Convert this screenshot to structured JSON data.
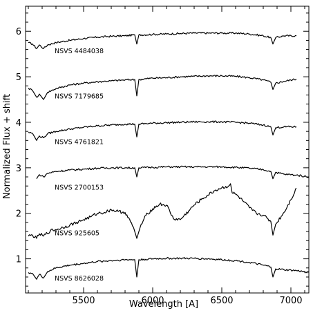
{
  "chart_data": {
    "type": "line",
    "title": "",
    "xlabel": "Wavelength   [A]",
    "ylabel": "Normalized Flux + shift",
    "xlim": [
      5080,
      7130
    ],
    "ylim": [
      0.25,
      6.55
    ],
    "x_ticks": [
      5500,
      6000,
      6500,
      7000
    ],
    "x_tick_labels": [
      "5500",
      "6000",
      "6500",
      "7000"
    ],
    "y_ticks": [
      1,
      2,
      3,
      4,
      5,
      6
    ],
    "y_tick_labels": [
      "1",
      "2",
      "3",
      "4",
      "5",
      "6"
    ],
    "grid": false,
    "series": [
      {
        "name": "NSVS 4484038",
        "label_at": [
          5290,
          5.52
        ],
        "points": [
          [
            5100,
            5.75
          ],
          [
            5130,
            5.72
          ],
          [
            5160,
            5.62
          ],
          [
            5180,
            5.7
          ],
          [
            5210,
            5.62
          ],
          [
            5240,
            5.7
          ],
          [
            5300,
            5.75
          ],
          [
            5400,
            5.8
          ],
          [
            5500,
            5.84
          ],
          [
            5600,
            5.87
          ],
          [
            5700,
            5.89
          ],
          [
            5800,
            5.9
          ],
          [
            5870,
            5.92
          ],
          [
            5885,
            5.72
          ],
          [
            5900,
            5.92
          ],
          [
            6000,
            5.93
          ],
          [
            6100,
            5.94
          ],
          [
            6200,
            5.95
          ],
          [
            6300,
            5.96
          ],
          [
            6400,
            5.96
          ],
          [
            6500,
            5.96
          ],
          [
            6600,
            5.96
          ],
          [
            6700,
            5.94
          ],
          [
            6800,
            5.9
          ],
          [
            6855,
            5.86
          ],
          [
            6870,
            5.72
          ],
          [
            6890,
            5.86
          ],
          [
            6950,
            5.9
          ],
          [
            7040,
            5.9
          ]
        ]
      },
      {
        "name": "NSVS 7179685",
        "label_at": [
          5290,
          4.52
        ],
        "points": [
          [
            5100,
            4.75
          ],
          [
            5130,
            4.7
          ],
          [
            5160,
            4.55
          ],
          [
            5180,
            4.62
          ],
          [
            5210,
            4.5
          ],
          [
            5240,
            4.66
          ],
          [
            5300,
            4.74
          ],
          [
            5400,
            4.82
          ],
          [
            5500,
            4.86
          ],
          [
            5600,
            4.89
          ],
          [
            5700,
            4.91
          ],
          [
            5800,
            4.93
          ],
          [
            5870,
            4.94
          ],
          [
            5885,
            4.58
          ],
          [
            5900,
            4.94
          ],
          [
            6000,
            4.97
          ],
          [
            6100,
            4.98
          ],
          [
            6200,
            5.0
          ],
          [
            6300,
            5.01
          ],
          [
            6400,
            5.02
          ],
          [
            6500,
            5.02
          ],
          [
            6600,
            5.01
          ],
          [
            6700,
            4.98
          ],
          [
            6800,
            4.93
          ],
          [
            6855,
            4.88
          ],
          [
            6870,
            4.72
          ],
          [
            6890,
            4.86
          ],
          [
            6950,
            4.9
          ],
          [
            7040,
            4.95
          ]
        ]
      },
      {
        "name": "NSVS 4761821",
        "label_at": [
          5290,
          3.52
        ],
        "points": [
          [
            5100,
            3.78
          ],
          [
            5130,
            3.76
          ],
          [
            5160,
            3.6
          ],
          [
            5180,
            3.7
          ],
          [
            5210,
            3.66
          ],
          [
            5240,
            3.75
          ],
          [
            5300,
            3.8
          ],
          [
            5400,
            3.85
          ],
          [
            5500,
            3.89
          ],
          [
            5600,
            3.92
          ],
          [
            5700,
            3.94
          ],
          [
            5800,
            3.96
          ],
          [
            5870,
            3.96
          ],
          [
            5885,
            3.68
          ],
          [
            5900,
            3.96
          ],
          [
            6000,
            3.98
          ],
          [
            6100,
            3.99
          ],
          [
            6200,
            4.0
          ],
          [
            6300,
            4.01
          ],
          [
            6400,
            4.01
          ],
          [
            6500,
            4.01
          ],
          [
            6600,
            4.0
          ],
          [
            6700,
            3.98
          ],
          [
            6800,
            3.94
          ],
          [
            6855,
            3.9
          ],
          [
            6870,
            3.72
          ],
          [
            6890,
            3.88
          ],
          [
            6950,
            3.9
          ],
          [
            7040,
            3.9
          ]
        ]
      },
      {
        "name": "NSVS 2700153",
        "label_at": [
          5290,
          2.52
        ],
        "points": [
          [
            5160,
            2.76
          ],
          [
            5180,
            2.85
          ],
          [
            5210,
            2.8
          ],
          [
            5240,
            2.88
          ],
          [
            5300,
            2.92
          ],
          [
            5400,
            2.95
          ],
          [
            5500,
            2.97
          ],
          [
            5600,
            2.99
          ],
          [
            5700,
            3.0
          ],
          [
            5800,
            3.0
          ],
          [
            5870,
            3.0
          ],
          [
            5885,
            2.8
          ],
          [
            5900,
            3.0
          ],
          [
            6000,
            3.01
          ],
          [
            6100,
            3.02
          ],
          [
            6200,
            3.02
          ],
          [
            6300,
            3.02
          ],
          [
            6400,
            3.02
          ],
          [
            6500,
            3.02
          ],
          [
            6600,
            3.01
          ],
          [
            6700,
            2.99
          ],
          [
            6800,
            2.96
          ],
          [
            6855,
            2.92
          ],
          [
            6870,
            2.76
          ],
          [
            6890,
            2.9
          ],
          [
            6950,
            2.86
          ],
          [
            7040,
            2.84
          ],
          [
            7130,
            2.8
          ]
        ]
      },
      {
        "name": "NSVS 925605",
        "label_at": [
          5290,
          1.52
        ],
        "points": [
          [
            5100,
            1.5
          ],
          [
            5130,
            1.52
          ],
          [
            5160,
            1.45
          ],
          [
            5180,
            1.55
          ],
          [
            5210,
            1.5
          ],
          [
            5260,
            1.62
          ],
          [
            5300,
            1.64
          ],
          [
            5400,
            1.74
          ],
          [
            5450,
            1.8
          ],
          [
            5500,
            1.86
          ],
          [
            5550,
            1.92
          ],
          [
            5600,
            2.0
          ],
          [
            5650,
            2.02
          ],
          [
            5700,
            2.08
          ],
          [
            5750,
            2.04
          ],
          [
            5800,
            2.02
          ],
          [
            5860,
            1.7
          ],
          [
            5885,
            1.45
          ],
          [
            5910,
            1.7
          ],
          [
            5950,
            1.95
          ],
          [
            6000,
            2.1
          ],
          [
            6050,
            2.2
          ],
          [
            6100,
            2.18
          ],
          [
            6150,
            1.88
          ],
          [
            6200,
            1.86
          ],
          [
            6260,
            2.05
          ],
          [
            6300,
            2.18
          ],
          [
            6350,
            2.3
          ],
          [
            6400,
            2.4
          ],
          [
            6450,
            2.5
          ],
          [
            6500,
            2.56
          ],
          [
            6550,
            2.6
          ],
          [
            6563,
            2.65
          ],
          [
            6575,
            2.45
          ],
          [
            6600,
            2.42
          ],
          [
            6650,
            2.28
          ],
          [
            6700,
            2.12
          ],
          [
            6750,
            2.0
          ],
          [
            6800,
            1.96
          ],
          [
            6855,
            1.82
          ],
          [
            6870,
            1.52
          ],
          [
            6890,
            1.76
          ],
          [
            6950,
            2.02
          ],
          [
            7000,
            2.3
          ],
          [
            7040,
            2.55
          ]
        ]
      },
      {
        "name": "NSVS 8626028",
        "label_at": [
          5290,
          0.52
        ],
        "points": [
          [
            5100,
            0.7
          ],
          [
            5130,
            0.68
          ],
          [
            5160,
            0.55
          ],
          [
            5180,
            0.66
          ],
          [
            5210,
            0.58
          ],
          [
            5240,
            0.72
          ],
          [
            5300,
            0.8
          ],
          [
            5400,
            0.86
          ],
          [
            5500,
            0.9
          ],
          [
            5600,
            0.94
          ],
          [
            5700,
            0.96
          ],
          [
            5800,
            0.98
          ],
          [
            5870,
            0.98
          ],
          [
            5885,
            0.6
          ],
          [
            5900,
            0.98
          ],
          [
            6000,
            1.0
          ],
          [
            6100,
            1.01
          ],
          [
            6200,
            1.01
          ],
          [
            6300,
            1.01
          ],
          [
            6400,
            1.0
          ],
          [
            6500,
            0.98
          ],
          [
            6600,
            0.96
          ],
          [
            6700,
            0.92
          ],
          [
            6800,
            0.86
          ],
          [
            6855,
            0.82
          ],
          [
            6870,
            0.6
          ],
          [
            6890,
            0.78
          ],
          [
            6950,
            0.76
          ],
          [
            7040,
            0.74
          ],
          [
            7130,
            0.7
          ]
        ]
      }
    ]
  }
}
